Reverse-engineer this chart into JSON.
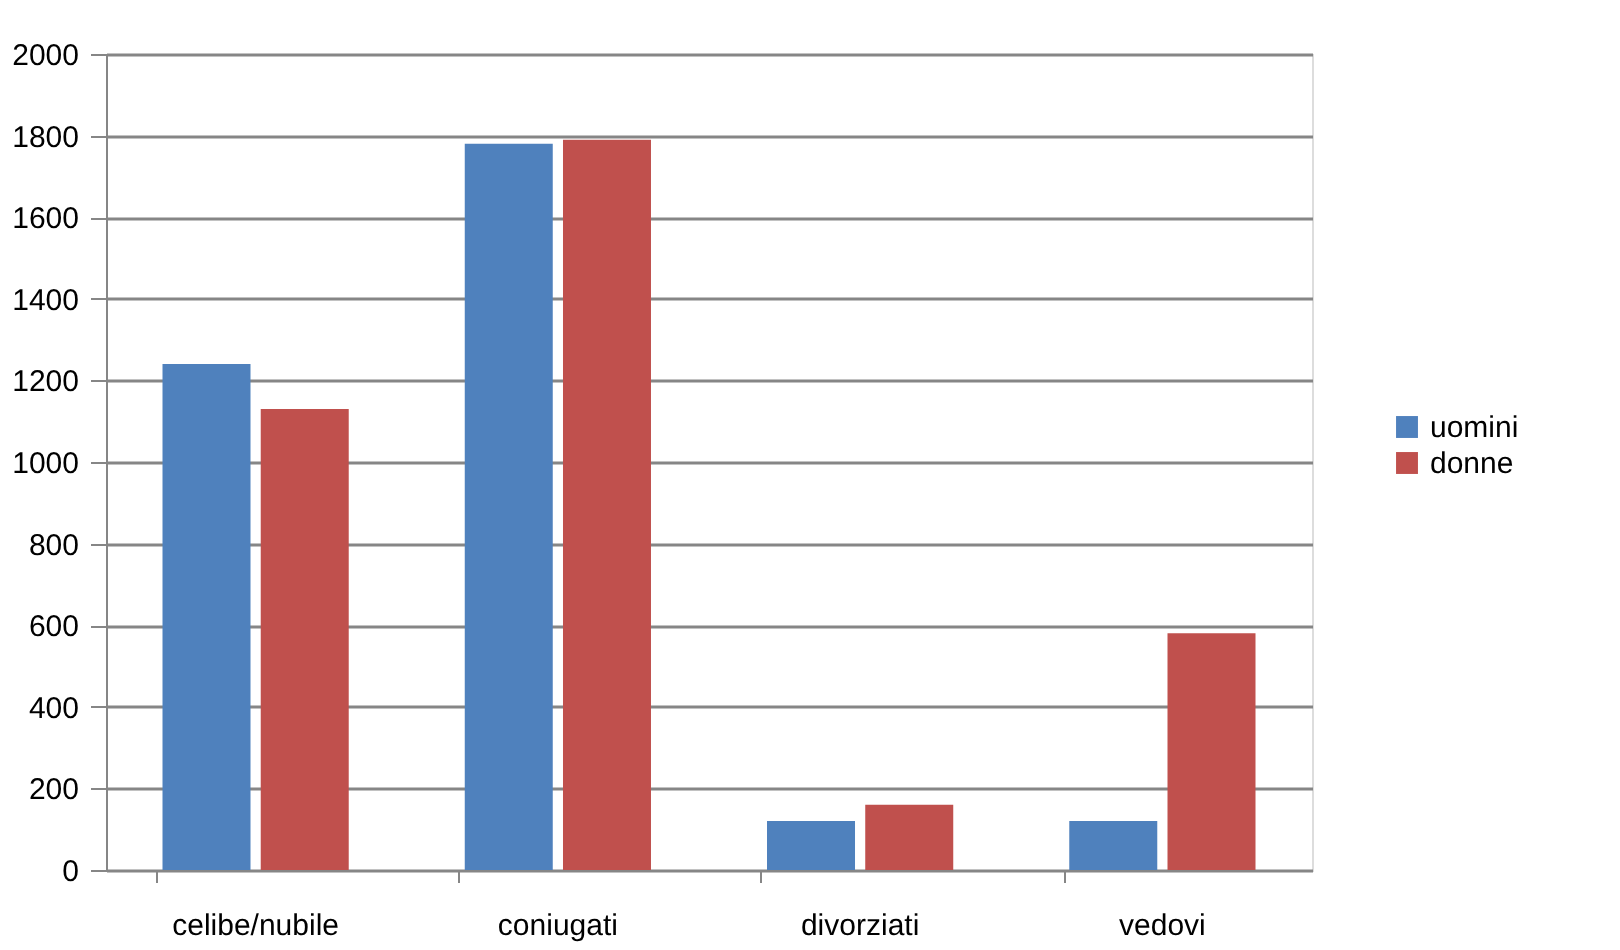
{
  "chart_data": {
    "type": "bar",
    "categories": [
      "celibe/nubile",
      "coniugati",
      "divorziati",
      "vedovi"
    ],
    "series": [
      {
        "name": "uomini",
        "color": "#4f81bd",
        "values": [
          1240,
          1780,
          120,
          120
        ]
      },
      {
        "name": "donne",
        "color": "#c0504d",
        "values": [
          1130,
          1790,
          160,
          580
        ]
      }
    ],
    "ylim": [
      0,
      2000
    ],
    "yticks": [
      0,
      200,
      400,
      600,
      800,
      1000,
      1200,
      1400,
      1600,
      1800,
      2000
    ],
    "grid": "y",
    "legend": "right"
  }
}
